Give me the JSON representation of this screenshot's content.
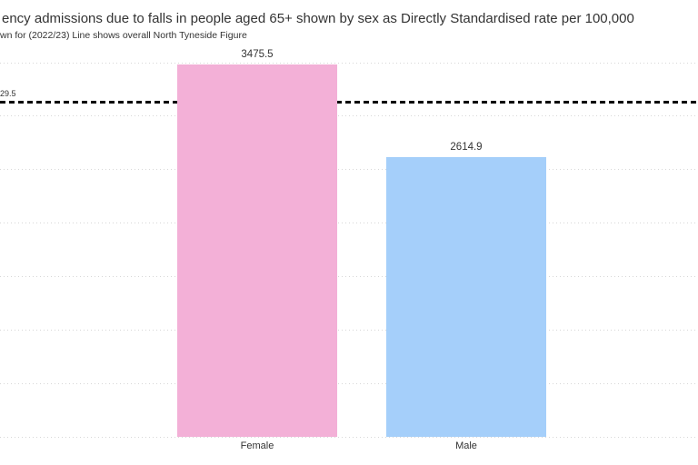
{
  "header": {
    "title_visible": "ency admissions due to falls in people aged 65+ shown by sex as Directly Standardised rate per 100,000",
    "subtitle_visible": "wn for (2022/23) Line shows overall North Tyneside Figure"
  },
  "chart_data": {
    "type": "bar",
    "title": "ency admissions due to falls in people aged 65+ shown by sex as Directly Standardised rate per 100,000",
    "subtitle": "wn for (2022/23) Line shows overall North Tyneside Figure",
    "categories": [
      "Female",
      "Male"
    ],
    "values": [
      3475.5,
      2614.9
    ],
    "value_labels": [
      "3475.5",
      "2614.9"
    ],
    "bar_colors": [
      "#f3b0d7",
      "#a5cffa"
    ],
    "reference_line": {
      "value": 3129.5,
      "label_visible": "29.5",
      "color": "#000000",
      "style": "dashed",
      "description": "Line shows overall North Tyneside Figure"
    },
    "y_axis": {
      "min": 0,
      "max": 3500,
      "gridline_step": 500,
      "grid": true,
      "tick_labels_visible": false
    },
    "x_axis": {
      "labels": [
        "Female",
        "Male"
      ]
    },
    "legend": "none",
    "colors": {
      "female_bar": "#f3b0d7",
      "male_bar": "#a5cffa",
      "gridline": "#d7d7d7",
      "reference_line": "#000000",
      "text": "#333333",
      "background": "#ffffff"
    }
  }
}
